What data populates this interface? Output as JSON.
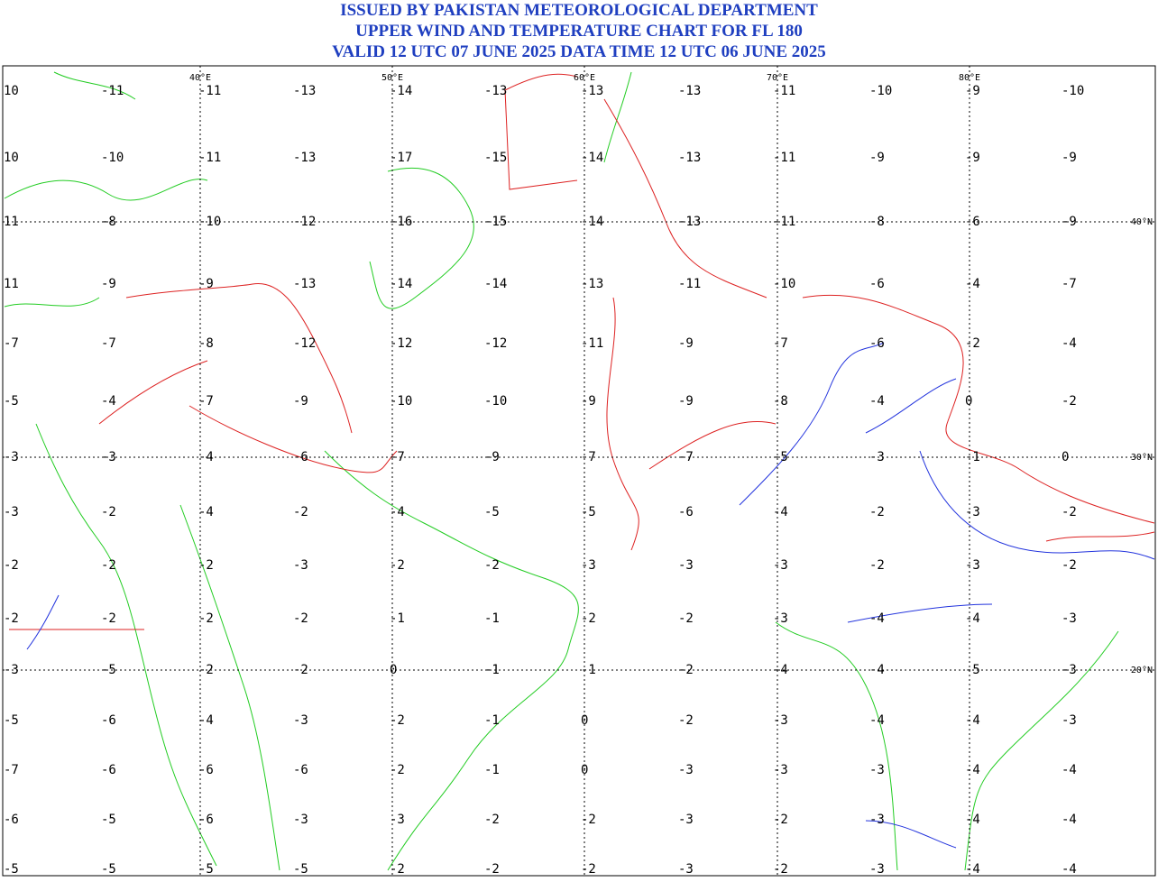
{
  "header": {
    "lines": [
      "ISSUED BY PAKISTAN METEOROLOGICAL DEPARTMENT",
      "UPPER WIND AND TEMPERATURE CHART FOR FL 180",
      "VALID 12 UTC 07 JUNE 2025 DATA TIME 12 UTC 06 JUNE 2025"
    ]
  },
  "longitudes": [
    "40°E",
    "50°E",
    "60°E",
    "70°E",
    "80°E"
  ],
  "latitudes": [
    "40°N",
    "30°N",
    "20°N"
  ],
  "temperatures": [
    [
      10,
      -11,
      -11,
      -13,
      -14,
      -13,
      -13,
      -13,
      -11,
      -10,
      -9,
      -10
    ],
    [
      10,
      -10,
      -11,
      -13,
      -17,
      -15,
      -14,
      -13,
      -11,
      -9,
      -9,
      -9
    ],
    [
      11,
      -8,
      -10,
      -12,
      -16,
      -15,
      -14,
      -13,
      -11,
      -8,
      -6,
      -9
    ],
    [
      11,
      -9,
      -9,
      -13,
      -14,
      -14,
      -13,
      -11,
      -10,
      -6,
      -4,
      -7
    ],
    [
      -7,
      -7,
      -8,
      -12,
      -12,
      -12,
      -11,
      -9,
      -7,
      -6,
      -2,
      -4
    ],
    [
      -5,
      -4,
      -7,
      -9,
      -10,
      -10,
      -9,
      -9,
      -8,
      -4,
      0,
      -2
    ],
    [
      -3,
      -3,
      -4,
      -6,
      -7,
      -9,
      -7,
      -7,
      -5,
      -3,
      -1,
      0
    ],
    [
      -3,
      -2,
      -4,
      -2,
      -4,
      -5,
      -5,
      -6,
      -4,
      -2,
      -3,
      -2
    ],
    [
      -2,
      -2,
      -2,
      -3,
      -2,
      -2,
      -3,
      -3,
      -3,
      -2,
      -3,
      -2
    ],
    [
      -2,
      -2,
      -2,
      -2,
      -1,
      -1,
      -2,
      -2,
      -3,
      -4,
      -4,
      -3
    ],
    [
      -3,
      -5,
      -2,
      -2,
      0,
      -1,
      -1,
      -2,
      -4,
      -4,
      -5,
      -3
    ],
    [
      -5,
      -6,
      -4,
      -3,
      -2,
      -1,
      0,
      -2,
      -3,
      -4,
      -4,
      -3
    ],
    [
      -7,
      -6,
      -6,
      -6,
      -2,
      -1,
      0,
      -3,
      -3,
      -3,
      -4,
      -4
    ],
    [
      -6,
      -5,
      -6,
      -3,
      -3,
      -2,
      -2,
      -3,
      -2,
      -3,
      -4,
      -4
    ],
    [
      -5,
      -5,
      -5,
      -5,
      -2,
      -2,
      -2,
      -3,
      -2,
      -3,
      -4,
      -4
    ]
  ]
}
